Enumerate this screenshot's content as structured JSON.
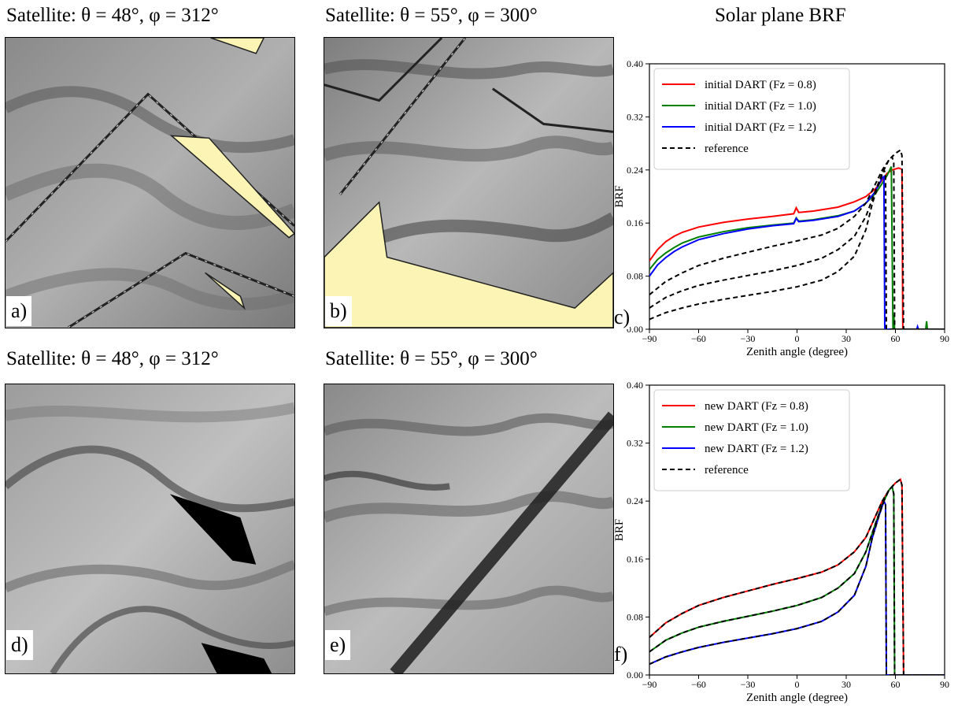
{
  "titles": {
    "a": "Satellite: θ = 48°, φ = 312°",
    "b": "Satellite: θ = 55°, φ = 300°",
    "c": "Solar plane BRF",
    "d": "Satellite: θ = 48°, φ = 312°",
    "e": "Satellite: θ = 55°, φ = 300°"
  },
  "panel_labels": {
    "a": "a)",
    "b": "b)",
    "c": "c)",
    "d": "d)",
    "e": "e)",
    "f": "f)"
  },
  "colors": {
    "red": "#ff0000",
    "green": "#008000",
    "blue": "#0000ff",
    "reference": "#000000",
    "sunlit_hole": "#fbf4b4"
  },
  "chart_data": [
    {
      "type": "line",
      "id": "c",
      "xlabel": "Zenith angle (degree)",
      "ylabel": "BRF",
      "xlim": [
        -90,
        90
      ],
      "ylim": [
        0,
        0.4
      ],
      "xticks": [
        "−90",
        "−60",
        "−30",
        "0",
        "30",
        "60",
        "90"
      ],
      "yticks": [
        "0.00",
        "0.08",
        "0.16",
        "0.24",
        "0.32",
        "0.40"
      ],
      "legend_position": "top-left",
      "series": [
        {
          "name": "initial DART (Fz = 0.8)",
          "color": "#ff0000",
          "dash": false,
          "points": [
            [
              -90,
              0.103
            ],
            [
              -85,
              0.12
            ],
            [
              -80,
              0.132
            ],
            [
              -75,
              0.14
            ],
            [
              -70,
              0.146
            ],
            [
              -60,
              0.154
            ],
            [
              -45,
              0.161
            ],
            [
              -30,
              0.166
            ],
            [
              -15,
              0.17
            ],
            [
              -2,
              0.174
            ],
            [
              -0.5,
              0.183
            ],
            [
              1,
              0.176
            ],
            [
              10,
              0.178
            ],
            [
              25,
              0.184
            ],
            [
              35,
              0.192
            ],
            [
              42,
              0.2
            ],
            [
              48,
              0.212
            ],
            [
              52,
              0.225
            ],
            [
              55,
              0.235
            ],
            [
              58,
              0.24
            ],
            [
              62,
              0.243
            ],
            [
              64,
              0.241
            ],
            [
              64.5,
              0.0
            ],
            [
              90,
              0.0
            ]
          ]
        },
        {
          "name": "initial DART (Fz = 1.0)",
          "color": "#008000",
          "dash": false,
          "points": [
            [
              -90,
              0.09
            ],
            [
              -85,
              0.105
            ],
            [
              -80,
              0.115
            ],
            [
              -75,
              0.123
            ],
            [
              -70,
              0.13
            ],
            [
              -60,
              0.139
            ],
            [
              -45,
              0.147
            ],
            [
              -30,
              0.153
            ],
            [
              -15,
              0.157
            ],
            [
              -2,
              0.16
            ],
            [
              -0.5,
              0.168
            ],
            [
              1,
              0.163
            ],
            [
              10,
              0.165
            ],
            [
              25,
              0.171
            ],
            [
              35,
              0.178
            ],
            [
              42,
              0.19
            ],
            [
              48,
              0.205
            ],
            [
              52,
              0.22
            ],
            [
              55,
              0.232
            ],
            [
              57.5,
              0.245
            ],
            [
              58.5,
              0.0
            ],
            [
              59,
              0.022
            ],
            [
              59.5,
              0.0
            ],
            [
              78.5,
              0.0
            ],
            [
              79,
              0.012
            ],
            [
              79.5,
              0.0
            ],
            [
              90,
              0.0
            ]
          ]
        },
        {
          "name": "initial DART (Fz = 1.2)",
          "color": "#0000ff",
          "dash": false,
          "points": [
            [
              -90,
              0.08
            ],
            [
              -85,
              0.097
            ],
            [
              -80,
              0.108
            ],
            [
              -75,
              0.117
            ],
            [
              -70,
              0.124
            ],
            [
              -60,
              0.135
            ],
            [
              -45,
              0.144
            ],
            [
              -30,
              0.151
            ],
            [
              -15,
              0.156
            ],
            [
              -2,
              0.159
            ],
            [
              -0.5,
              0.167
            ],
            [
              1,
              0.162
            ],
            [
              10,
              0.164
            ],
            [
              25,
              0.17
            ],
            [
              35,
              0.178
            ],
            [
              42,
              0.19
            ],
            [
              47,
              0.205
            ],
            [
              50,
              0.218
            ],
            [
              52,
              0.228
            ],
            [
              53,
              0.23
            ],
            [
              53.5,
              0.0
            ],
            [
              73,
              0.0
            ],
            [
              73.5,
              0.004
            ],
            [
              74,
              0.0
            ],
            [
              90,
              0.0
            ]
          ]
        },
        {
          "name": "reference",
          "color": "#000000",
          "dash": true,
          "points": [
            [
              -90,
              0.052
            ],
            [
              -80,
              0.072
            ],
            [
              -70,
              0.085
            ],
            [
              -60,
              0.096
            ],
            [
              -45,
              0.107
            ],
            [
              -30,
              0.116
            ],
            [
              -15,
              0.125
            ],
            [
              0,
              0.133
            ],
            [
              15,
              0.142
            ],
            [
              25,
              0.152
            ],
            [
              35,
              0.17
            ],
            [
              42,
              0.19
            ],
            [
              48,
              0.22
            ],
            [
              52,
              0.24
            ],
            [
              56,
              0.255
            ],
            [
              60,
              0.265
            ],
            [
              63,
              0.27
            ],
            [
              64,
              0.262
            ],
            [
              65,
              0.0
            ],
            [
              90,
              0.0
            ]
          ]
        },
        {
          "name": "",
          "color": "#000000",
          "dash": true,
          "points": [
            [
              -90,
              0.032
            ],
            [
              -80,
              0.048
            ],
            [
              -70,
              0.058
            ],
            [
              -60,
              0.066
            ],
            [
              -45,
              0.074
            ],
            [
              -30,
              0.081
            ],
            [
              -15,
              0.088
            ],
            [
              0,
              0.096
            ],
            [
              15,
              0.107
            ],
            [
              25,
              0.12
            ],
            [
              35,
              0.14
            ],
            [
              42,
              0.17
            ],
            [
              48,
              0.21
            ],
            [
              52,
              0.235
            ],
            [
              56,
              0.255
            ],
            [
              58,
              0.26
            ],
            [
              59,
              0.25
            ],
            [
              59.5,
              0.0
            ],
            [
              90,
              0.0
            ]
          ]
        },
        {
          "name": "",
          "color": "#000000",
          "dash": true,
          "points": [
            [
              -90,
              0.015
            ],
            [
              -80,
              0.025
            ],
            [
              -70,
              0.032
            ],
            [
              -60,
              0.038
            ],
            [
              -45,
              0.045
            ],
            [
              -30,
              0.051
            ],
            [
              -15,
              0.057
            ],
            [
              0,
              0.064
            ],
            [
              15,
              0.074
            ],
            [
              25,
              0.087
            ],
            [
              35,
              0.11
            ],
            [
              42,
              0.15
            ],
            [
              46,
              0.19
            ],
            [
              50,
              0.22
            ],
            [
              53,
              0.24
            ],
            [
              54,
              0.235
            ],
            [
              54.5,
              0.0
            ],
            [
              90,
              0.0
            ]
          ]
        }
      ]
    },
    {
      "type": "line",
      "id": "f",
      "xlabel": "Zenith angle (degree)",
      "ylabel": "BRF",
      "xlim": [
        -90,
        90
      ],
      "ylim": [
        0,
        0.4
      ],
      "xticks": [
        "−90",
        "−60",
        "−30",
        "0",
        "30",
        "60",
        "90"
      ],
      "yticks": [
        "0.00",
        "0.08",
        "0.16",
        "0.24",
        "0.32",
        "0.40"
      ],
      "legend_position": "top-left",
      "series": [
        {
          "name": "new DART (Fz = 0.8)",
          "color": "#ff0000",
          "dash": false,
          "points": [
            [
              -90,
              0.052
            ],
            [
              -80,
              0.072
            ],
            [
              -70,
              0.085
            ],
            [
              -60,
              0.096
            ],
            [
              -45,
              0.107
            ],
            [
              -30,
              0.116
            ],
            [
              -15,
              0.125
            ],
            [
              0,
              0.133
            ],
            [
              15,
              0.142
            ],
            [
              25,
              0.152
            ],
            [
              35,
              0.17
            ],
            [
              42,
              0.19
            ],
            [
              48,
              0.22
            ],
            [
              52,
              0.24
            ],
            [
              56,
              0.255
            ],
            [
              60,
              0.265
            ],
            [
              63,
              0.27
            ],
            [
              64,
              0.262
            ],
            [
              65,
              0.0
            ],
            [
              90,
              0.0
            ]
          ]
        },
        {
          "name": "new DART (Fz = 1.0)",
          "color": "#008000",
          "dash": false,
          "points": [
            [
              -90,
              0.032
            ],
            [
              -80,
              0.048
            ],
            [
              -70,
              0.058
            ],
            [
              -60,
              0.066
            ],
            [
              -45,
              0.074
            ],
            [
              -30,
              0.081
            ],
            [
              -15,
              0.088
            ],
            [
              0,
              0.096
            ],
            [
              15,
              0.107
            ],
            [
              25,
              0.12
            ],
            [
              35,
              0.14
            ],
            [
              42,
              0.17
            ],
            [
              48,
              0.21
            ],
            [
              52,
              0.235
            ],
            [
              56,
              0.255
            ],
            [
              58,
              0.26
            ],
            [
              59,
              0.25
            ],
            [
              59.5,
              0.0
            ],
            [
              90,
              0.0
            ]
          ]
        },
        {
          "name": "new DART (Fz = 1.2)",
          "color": "#0000ff",
          "dash": false,
          "points": [
            [
              -90,
              0.015
            ],
            [
              -80,
              0.025
            ],
            [
              -70,
              0.032
            ],
            [
              -60,
              0.038
            ],
            [
              -45,
              0.045
            ],
            [
              -30,
              0.051
            ],
            [
              -15,
              0.057
            ],
            [
              0,
              0.064
            ],
            [
              15,
              0.074
            ],
            [
              25,
              0.087
            ],
            [
              35,
              0.11
            ],
            [
              42,
              0.15
            ],
            [
              46,
              0.19
            ],
            [
              50,
              0.22
            ],
            [
              53,
              0.24
            ],
            [
              54,
              0.235
            ],
            [
              54.5,
              0.0
            ],
            [
              90,
              0.0
            ]
          ]
        },
        {
          "name": "reference",
          "color": "#000000",
          "dash": true,
          "points": [
            [
              -90,
              0.052
            ],
            [
              -80,
              0.072
            ],
            [
              -70,
              0.085
            ],
            [
              -60,
              0.096
            ],
            [
              -45,
              0.107
            ],
            [
              -30,
              0.116
            ],
            [
              -15,
              0.125
            ],
            [
              0,
              0.133
            ],
            [
              15,
              0.142
            ],
            [
              25,
              0.152
            ],
            [
              35,
              0.17
            ],
            [
              42,
              0.19
            ],
            [
              48,
              0.22
            ],
            [
              52,
              0.24
            ],
            [
              56,
              0.255
            ],
            [
              60,
              0.265
            ],
            [
              63,
              0.27
            ],
            [
              64,
              0.262
            ],
            [
              65,
              0.0
            ],
            [
              90,
              0.0
            ]
          ]
        },
        {
          "name": "",
          "color": "#000000",
          "dash": true,
          "points": [
            [
              -90,
              0.032
            ],
            [
              -80,
              0.048
            ],
            [
              -70,
              0.058
            ],
            [
              -60,
              0.066
            ],
            [
              -45,
              0.074
            ],
            [
              -30,
              0.081
            ],
            [
              -15,
              0.088
            ],
            [
              0,
              0.096
            ],
            [
              15,
              0.107
            ],
            [
              25,
              0.12
            ],
            [
              35,
              0.14
            ],
            [
              42,
              0.17
            ],
            [
              48,
              0.21
            ],
            [
              52,
              0.235
            ],
            [
              56,
              0.255
            ],
            [
              58,
              0.26
            ],
            [
              59,
              0.25
            ],
            [
              59.5,
              0.0
            ],
            [
              90,
              0.0
            ]
          ]
        },
        {
          "name": "",
          "color": "#000000",
          "dash": true,
          "points": [
            [
              -90,
              0.015
            ],
            [
              -80,
              0.025
            ],
            [
              -70,
              0.032
            ],
            [
              -60,
              0.038
            ],
            [
              -45,
              0.045
            ],
            [
              -30,
              0.051
            ],
            [
              -15,
              0.057
            ],
            [
              0,
              0.064
            ],
            [
              15,
              0.074
            ],
            [
              25,
              0.087
            ],
            [
              35,
              0.11
            ],
            [
              42,
              0.15
            ],
            [
              46,
              0.19
            ],
            [
              50,
              0.22
            ],
            [
              53,
              0.24
            ],
            [
              54,
              0.235
            ],
            [
              54.5,
              0.0
            ],
            [
              90,
              0.0
            ]
          ]
        }
      ]
    }
  ]
}
